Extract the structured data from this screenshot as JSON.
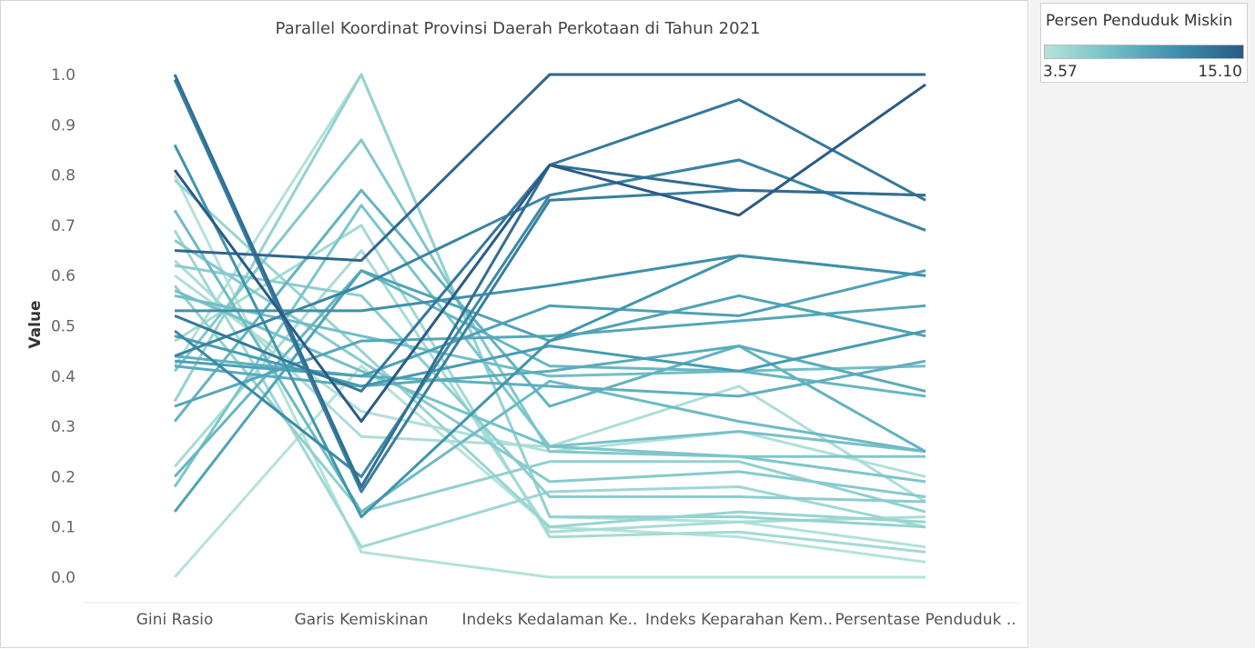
{
  "chart_data": {
    "type": "line",
    "title": "Parallel Koordinat Provinsi Daerah Perkotaan di Tahun 2021",
    "ylabel": "Value",
    "xlabel": "",
    "ylim": [
      0,
      1
    ],
    "yticks": [
      "0.0",
      "0.1",
      "0.2",
      "0.3",
      "0.4",
      "0.5",
      "0.6",
      "0.7",
      "0.8",
      "0.9",
      "1.0"
    ],
    "categories": [
      "Gini Rasio",
      "Garis Kemiskinan",
      "Indeks Kedalaman Ke..",
      "Indeks Keparahan Kem..",
      "Persentase Penduduk .."
    ],
    "grid": false,
    "legend": {
      "title": "Persen Penduduk Miskin",
      "min_label": "3.57",
      "max_label": "15.10",
      "placement": "top-right",
      "colors": [
        "#b6e3d9",
        "#2a5a86"
      ]
    },
    "series": [
      {
        "values": [
          0.81,
          0.31,
          0.82,
          0.72,
          0.98
        ],
        "color": 15.1
      },
      {
        "values": [
          0.65,
          0.63,
          1.0,
          1.0,
          1.0
        ],
        "color": 14.2
      },
      {
        "values": [
          1.0,
          0.18,
          0.82,
          0.77,
          0.76
        ],
        "color": 13.6
      },
      {
        "values": [
          0.52,
          0.37,
          0.82,
          0.95,
          0.75
        ],
        "color": 12.9
      },
      {
        "values": [
          0.99,
          0.17,
          0.75,
          0.77,
          0.76
        ],
        "color": 12.4
      },
      {
        "values": [
          0.44,
          0.58,
          0.76,
          0.83,
          0.69
        ],
        "color": 12.0
      },
      {
        "values": [
          0.49,
          0.2,
          0.76,
          0.83,
          0.69
        ],
        "color": 11.6
      },
      {
        "values": [
          0.53,
          0.53,
          0.58,
          0.64,
          0.6
        ],
        "color": 11.1
      },
      {
        "values": [
          0.86,
          0.12,
          0.47,
          0.64,
          0.6
        ],
        "color": 10.7
      },
      {
        "values": [
          0.48,
          0.38,
          0.46,
          0.41,
          0.49
        ],
        "color": 10.2
      },
      {
        "values": [
          0.43,
          0.4,
          0.54,
          0.52,
          0.61
        ],
        "color": 9.8
      },
      {
        "values": [
          0.13,
          0.61,
          0.47,
          0.56,
          0.48
        ],
        "color": 9.6
      },
      {
        "values": [
          0.34,
          0.47,
          0.48,
          0.51,
          0.54
        ],
        "color": 9.3
      },
      {
        "values": [
          0.42,
          0.38,
          0.41,
          0.46,
          0.37
        ],
        "color": 9.0
      },
      {
        "values": [
          0.44,
          0.4,
          0.38,
          0.36,
          0.43
        ],
        "color": 8.7
      },
      {
        "values": [
          0.31,
          0.77,
          0.34,
          0.46,
          0.25
        ],
        "color": 8.4
      },
      {
        "values": [
          0.2,
          0.61,
          0.42,
          0.41,
          0.36
        ],
        "color": 8.1
      },
      {
        "values": [
          0.73,
          0.13,
          0.39,
          0.31,
          0.25
        ],
        "color": 7.8
      },
      {
        "values": [
          0.56,
          0.48,
          0.4,
          0.41,
          0.42
        ],
        "color": 7.5
      },
      {
        "values": [
          0.57,
          0.41,
          0.26,
          0.29,
          0.25
        ],
        "color": 7.2
      },
      {
        "values": [
          0.18,
          0.74,
          0.26,
          0.24,
          0.19
        ],
        "color": 6.9
      },
      {
        "values": [
          0.41,
          0.87,
          0.25,
          0.24,
          0.24
        ],
        "color": 6.6
      },
      {
        "values": [
          0.67,
          0.43,
          0.19,
          0.21,
          0.16
        ],
        "color": 6.3
      },
      {
        "values": [
          0.62,
          0.56,
          0.16,
          0.16,
          0.15
        ],
        "color": 6.0
      },
      {
        "values": [
          0.58,
          0.13,
          0.23,
          0.23,
          0.13
        ],
        "color": 5.7
      },
      {
        "values": [
          0.35,
          1.0,
          0.12,
          0.12,
          0.1
        ],
        "color": 5.5
      },
      {
        "values": [
          0.79,
          0.45,
          0.1,
          0.13,
          0.11
        ],
        "color": 5.2
      },
      {
        "values": [
          0.69,
          0.06,
          0.17,
          0.18,
          0.1
        ],
        "color": 4.9
      },
      {
        "values": [
          0.47,
          0.7,
          0.08,
          0.09,
          0.05
        ],
        "color": 4.6
      },
      {
        "values": [
          0.22,
          0.65,
          0.09,
          0.11,
          0.12
        ],
        "color": 4.3
      },
      {
        "values": [
          0.63,
          0.28,
          0.26,
          0.38,
          0.15
        ],
        "color": 4.1
      },
      {
        "values": [
          0.6,
          0.33,
          0.25,
          0.29,
          0.2
        ],
        "color": 3.9
      },
      {
        "values": [
          0.42,
          1.0,
          0.12,
          0.11,
          0.06
        ],
        "color": 3.8
      },
      {
        "values": [
          0.8,
          0.05,
          0.0,
          0.0,
          0.0
        ],
        "color": 3.7
      },
      {
        "values": [
          0.0,
          0.42,
          0.1,
          0.08,
          0.03
        ],
        "color": 3.57
      }
    ]
  }
}
